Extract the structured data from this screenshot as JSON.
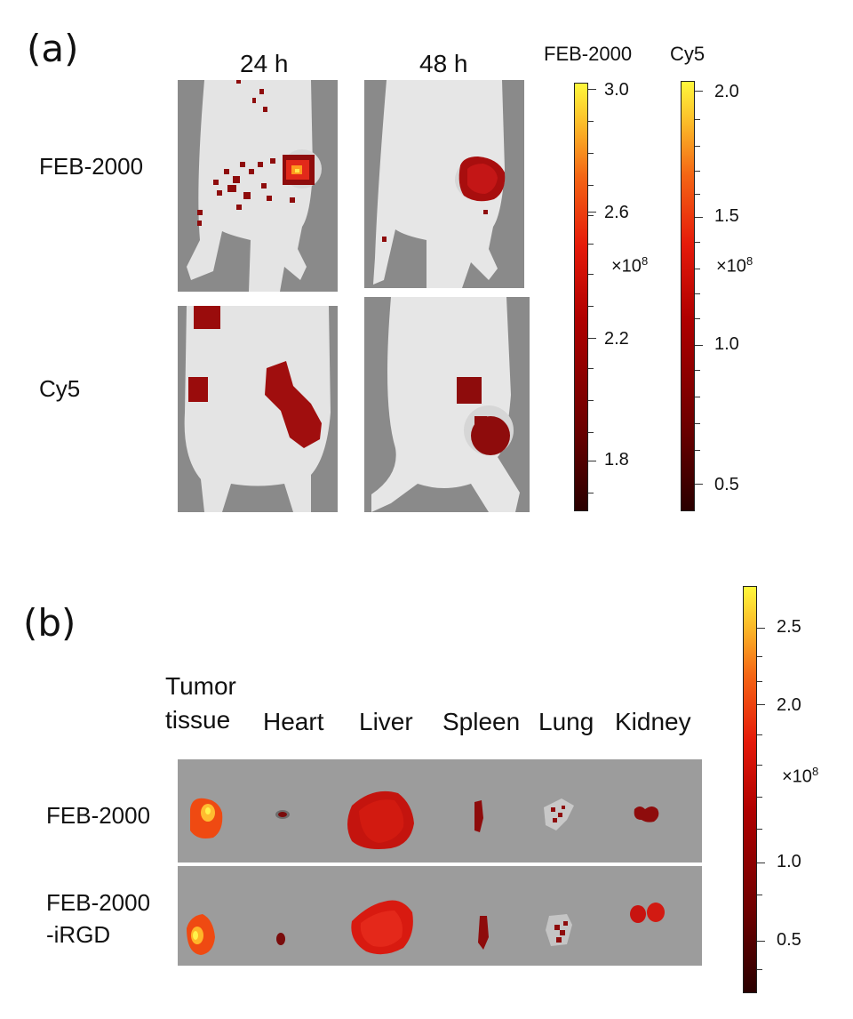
{
  "panel_a": {
    "letter": "(a)",
    "columns": [
      "24 h",
      "48 h"
    ],
    "rows": [
      "FEB-2000",
      "Cy5"
    ],
    "colorbars": [
      {
        "title": "FEB-2000",
        "ticks": [
          "3.0",
          "2.6",
          "2.2",
          "1.8"
        ],
        "multiplier": "×10",
        "exponent": "8"
      },
      {
        "title": "Cy5",
        "ticks": [
          "2.0",
          "1.5",
          "1.0",
          "0.5"
        ],
        "multiplier": "×10",
        "exponent": "8"
      }
    ]
  },
  "panel_b": {
    "letter": "(b)",
    "organs": [
      "Tumor tissue",
      "Heart",
      "Liver",
      "Spleen",
      "Lung",
      "Kidney"
    ],
    "organ_line1": "Tumor",
    "organ_line2": "tissue",
    "rows": [
      "FEB-2000",
      "FEB-2000",
      "-iRGD"
    ],
    "colorbar": {
      "ticks": [
        "2.5",
        "2.0",
        "1.0",
        "0.5"
      ],
      "multiplier": "×10",
      "exponent": "8"
    }
  },
  "colors": {
    "fluor_dark": "#7a0a0a",
    "fluor_mid": "#c81010",
    "fluor_hot": "#ff5a10",
    "fluor_peak": "#ffe030",
    "background_gray": "#8a8a8a",
    "mouse_white": "#e6e6e6"
  }
}
